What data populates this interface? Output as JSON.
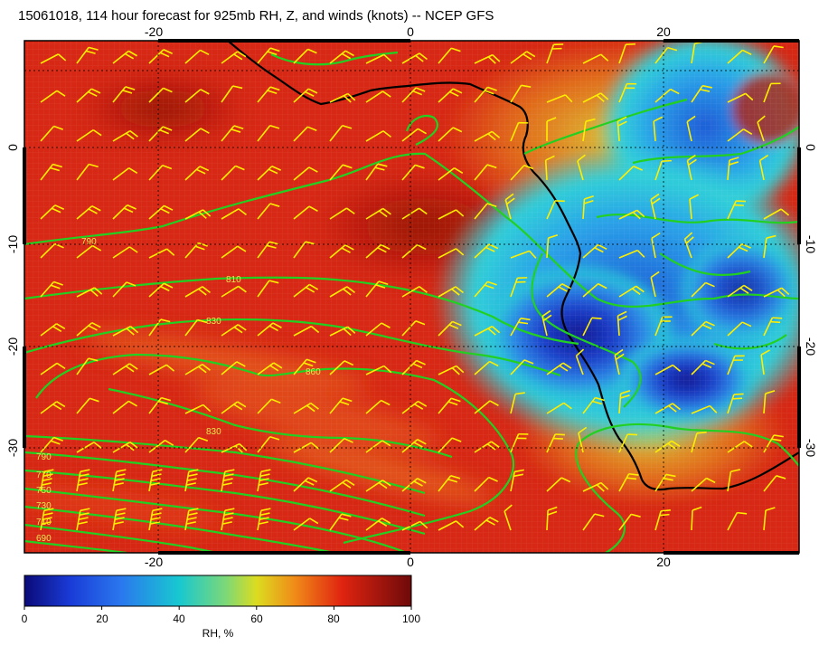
{
  "title": "15061018, 114 hour forecast for 925mb RH, Z, and winds (knots) -- NCEP GFS",
  "map": {
    "lon_range": [
      -30.5,
      30.5
    ],
    "lat_range": [
      -40,
      10
    ],
    "lon_ticks": [
      "-20",
      "0",
      "20"
    ],
    "lat_ticks": [
      "0",
      "-10",
      "-20",
      "-30"
    ],
    "colors": {
      "border": "#000000",
      "coast": "#000000",
      "contour": "#22d022",
      "barb": "#ffee00",
      "dry": "#1a2fb0",
      "moist": "#d62410"
    },
    "contour_labels": [
      "790",
      "810",
      "830",
      "860",
      "830",
      "790",
      "770",
      "750",
      "730",
      "710",
      "690"
    ]
  },
  "colorbar": {
    "label": "RH, %",
    "ticks": [
      "0",
      "20",
      "40",
      "60",
      "80",
      "100"
    ],
    "range": [
      0,
      100
    ]
  }
}
